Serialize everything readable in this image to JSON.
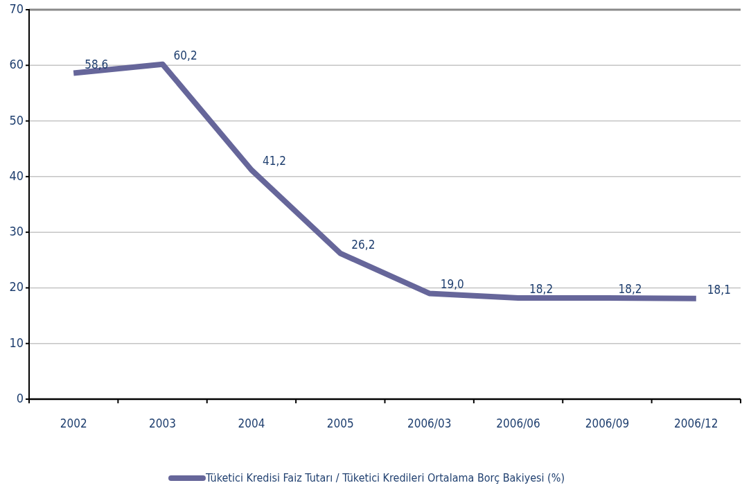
{
  "chart_data": {
    "type": "line",
    "categories": [
      "2002",
      "2003",
      "2004",
      "2005",
      "2006/03",
      "2006/06",
      "2006/09",
      "2006/12"
    ],
    "series": [
      {
        "name": "Tüketici Kredisi Faiz Tutarı / Tüketici Kredileri Ortalama Borç Bakiyesi (%)",
        "color": "#66669a",
        "values": [
          58.6,
          60.2,
          41.2,
          26.2,
          19.0,
          18.2,
          18.2,
          18.1
        ],
        "value_labels": [
          "58,6",
          "60,2",
          "41,2",
          "26,2",
          "19,0",
          "18,2",
          "18,2",
          "18,1"
        ]
      }
    ],
    "ylim": [
      0,
      70
    ],
    "yticks": [
      0,
      10,
      20,
      30,
      40,
      50,
      60,
      70
    ],
    "grid": "y",
    "legend": "bottom",
    "marker": "none",
    "line_style": "solid"
  }
}
